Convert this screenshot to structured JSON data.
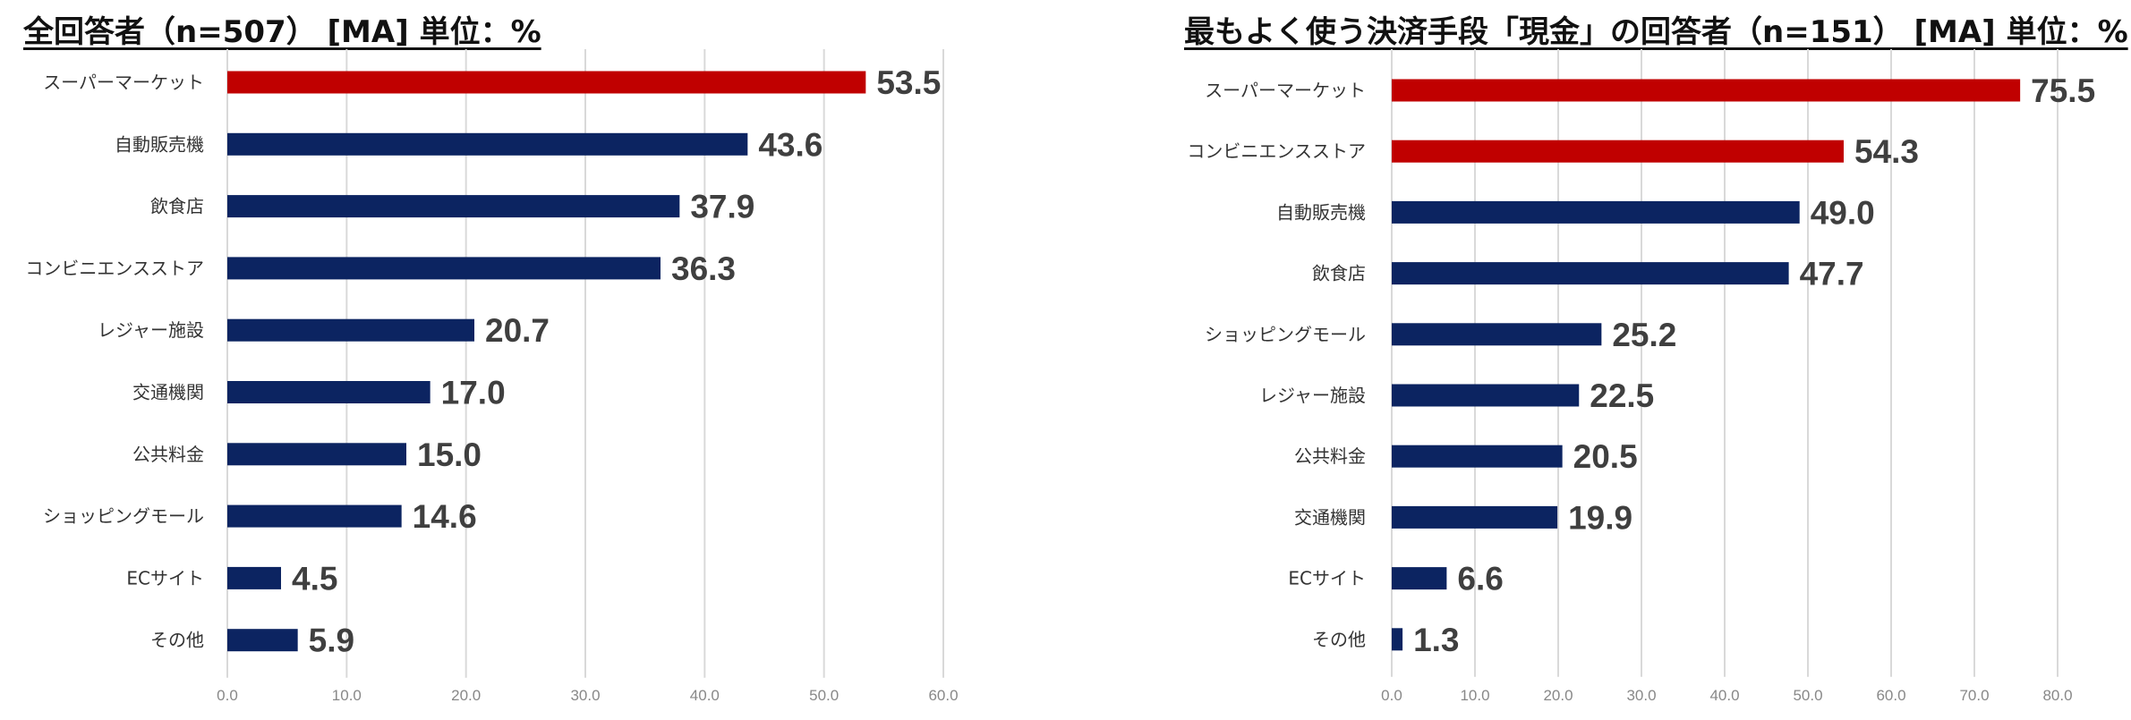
{
  "colors": {
    "highlight": "#c00000",
    "bar": "#0c2461",
    "label": "#3f3f3f",
    "grid": "#d9d9d9"
  },
  "chart_data": [
    {
      "type": "bar",
      "orientation": "horizontal",
      "title": "全回答者（n=507） [MA] 単位：%",
      "xlabel": "",
      "ylabel": "",
      "xlim": [
        0,
        60
      ],
      "ticks": [
        "0.0",
        "10.0",
        "20.0",
        "30.0",
        "40.0",
        "50.0",
        "60.0"
      ],
      "grid": true,
      "categories": [
        "スーパーマーケット",
        "自動販売機",
        "飲食店",
        "コンビニエンスストア",
        "レジャー施設",
        "交通機関",
        "公共料金",
        "ショッピングモール",
        "ECサイト",
        "その他"
      ],
      "values": [
        53.5,
        43.6,
        37.9,
        36.3,
        20.7,
        17.0,
        15.0,
        14.6,
        4.5,
        5.9
      ],
      "labels": [
        "53.5",
        "43.6",
        "37.9",
        "36.3",
        "20.7",
        "17.0",
        "15.0",
        "14.6",
        "4.5",
        "5.9"
      ],
      "highlighted": [
        0
      ]
    },
    {
      "type": "bar",
      "orientation": "horizontal",
      "title": "最もよく使う決済手段「現金」の回答者（n=151） [MA] 単位：%",
      "xlabel": "",
      "ylabel": "",
      "xlim": [
        0,
        80
      ],
      "ticks": [
        "0.0",
        "10.0",
        "20.0",
        "30.0",
        "40.0",
        "50.0",
        "60.0",
        "70.0",
        "80.0"
      ],
      "grid": true,
      "categories": [
        "スーパーマーケット",
        "コンビニエンスストア",
        "自動販売機",
        "飲食店",
        "ショッピングモール",
        "レジャー施設",
        "公共料金",
        "交通機関",
        "ECサイト",
        "その他"
      ],
      "values": [
        75.5,
        54.3,
        49.0,
        47.7,
        25.2,
        22.5,
        20.5,
        19.9,
        6.6,
        1.3
      ],
      "labels": [
        "75.5",
        "54.3",
        "49.0",
        "47.7",
        "25.2",
        "22.5",
        "20.5",
        "19.9",
        "6.6",
        "1.3"
      ],
      "highlighted": [
        0,
        1
      ]
    }
  ]
}
